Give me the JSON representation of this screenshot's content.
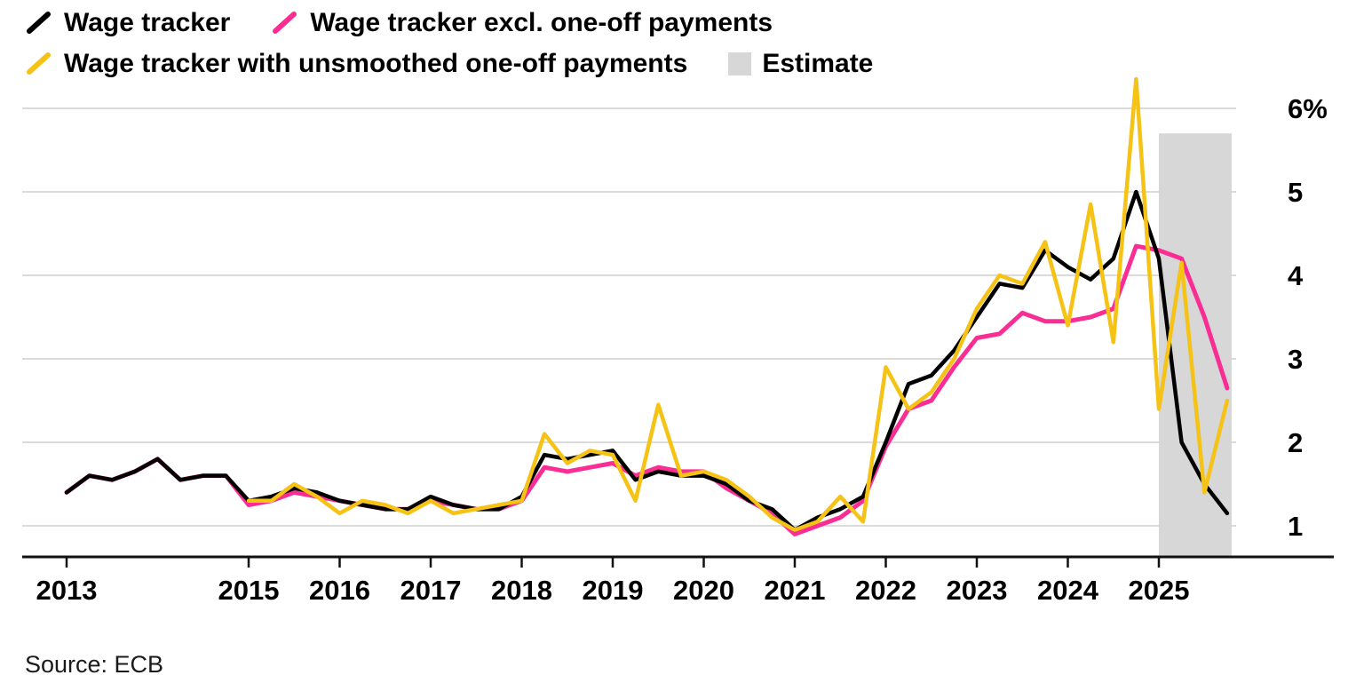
{
  "legend": {
    "items": [
      {
        "label": "Wage tracker",
        "color": "#000000",
        "marker": "line"
      },
      {
        "label": "Wage tracker excl. one-off payments",
        "color": "#fa2d95",
        "marker": "line"
      },
      {
        "label": "Wage tracker with unsmoothed one-off payments",
        "color": "#f5c216",
        "marker": "line"
      },
      {
        "label": "Estimate",
        "color": "#d7d7d7",
        "marker": "square"
      }
    ]
  },
  "source": "Source: ECB",
  "chart_data": {
    "type": "line",
    "x_start": 2013.0,
    "x_step": 0.25,
    "x_unit": "quarter",
    "x_tick_years": [
      2013,
      2015,
      2016,
      2017,
      2018,
      2019,
      2020,
      2021,
      2022,
      2023,
      2024,
      2025
    ],
    "x_tick_labels": [
      "2013",
      "2015",
      "2016",
      "2017",
      "2018",
      "2019",
      "2020",
      "2021",
      "2022",
      "2023",
      "2024",
      "2025"
    ],
    "y_ticks": [
      1,
      2,
      3,
      4,
      5,
      6
    ],
    "y_tick_labels": [
      "1",
      "2",
      "3",
      "4",
      "5",
      "6%"
    ],
    "ylim": [
      0.6,
      6.5
    ],
    "grid": true,
    "legend_position": "top-left",
    "gridline_color": "#dbdbdb",
    "axis_color": "#111111",
    "estimate_band": {
      "from": 2025.0,
      "to": 2025.8,
      "top_value": 5.7,
      "color": "#d7d7d7",
      "label": "Estimate"
    },
    "series": [
      {
        "name": "Wage tracker",
        "color": "#000000",
        "width": 4.5,
        "values": [
          1.4,
          1.6,
          1.55,
          1.65,
          1.8,
          1.55,
          1.6,
          1.6,
          1.3,
          1.35,
          1.45,
          1.4,
          1.3,
          1.25,
          1.2,
          1.2,
          1.35,
          1.25,
          1.2,
          1.2,
          1.35,
          1.85,
          1.8,
          1.85,
          1.9,
          1.55,
          1.65,
          1.6,
          1.6,
          1.5,
          1.3,
          1.2,
          0.95,
          1.1,
          1.2,
          1.35,
          2.0,
          2.7,
          2.8,
          3.1,
          3.5,
          3.9,
          3.85,
          4.3,
          4.1,
          3.95,
          4.2,
          5.0,
          4.2,
          2.0,
          1.5,
          1.15
        ]
      },
      {
        "name": "Wage tracker excl. one-off payments",
        "color": "#fa2d95",
        "width": 5,
        "values": [
          1.4,
          1.6,
          1.55,
          1.65,
          1.8,
          1.55,
          1.6,
          1.6,
          1.25,
          1.3,
          1.4,
          1.35,
          1.3,
          1.25,
          1.2,
          1.2,
          1.3,
          1.25,
          1.2,
          1.2,
          1.3,
          1.7,
          1.65,
          1.7,
          1.75,
          1.6,
          1.7,
          1.65,
          1.65,
          1.45,
          1.3,
          1.15,
          0.9,
          1.0,
          1.1,
          1.3,
          1.95,
          2.4,
          2.5,
          2.9,
          3.25,
          3.3,
          3.55,
          3.45,
          3.45,
          3.5,
          3.6,
          4.35,
          4.3,
          4.2,
          3.5,
          2.65
        ]
      },
      {
        "name": "Wage tracker with unsmoothed one-off payments",
        "color": "#f5c216",
        "width": 4.5,
        "values": [
          null,
          null,
          null,
          null,
          null,
          null,
          null,
          null,
          1.3,
          1.3,
          1.5,
          1.35,
          1.15,
          1.3,
          1.25,
          1.15,
          1.3,
          1.15,
          1.2,
          1.25,
          1.3,
          2.1,
          1.75,
          1.9,
          1.85,
          1.3,
          2.45,
          1.6,
          1.65,
          1.55,
          1.35,
          1.1,
          0.95,
          1.05,
          1.35,
          1.05,
          2.9,
          2.4,
          2.6,
          3.0,
          3.6,
          4.0,
          3.9,
          4.4,
          3.4,
          4.85,
          3.2,
          6.35,
          2.4,
          4.15,
          1.4,
          2.5
        ]
      }
    ]
  }
}
